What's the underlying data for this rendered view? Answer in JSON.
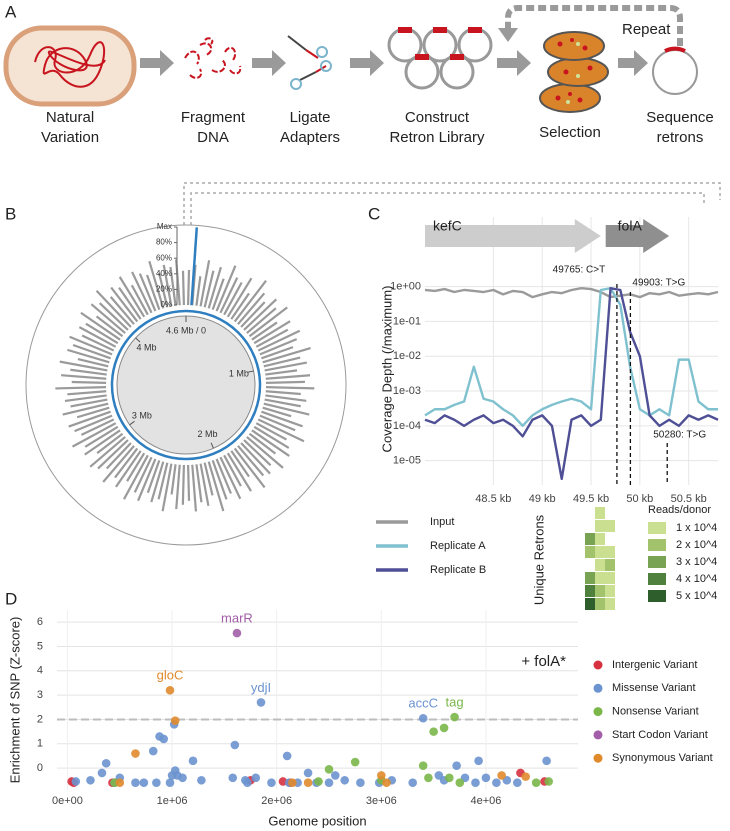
{
  "panel_a": {
    "panel": "A",
    "steps": [
      [
        "Natural",
        "Variation"
      ],
      [
        "Fragment",
        "DNA"
      ],
      [
        "Ligate",
        "Adapters"
      ],
      [
        "Construct",
        "Retron Library"
      ],
      [
        "Selection"
      ],
      [
        "Sequence",
        "retrons"
      ]
    ],
    "repeat": "Repeat"
  },
  "chart_data": [
    {
      "type": "radial",
      "panel": "B",
      "xlim": [
        0,
        4.6
      ],
      "xticks": [
        {
          "value": 0,
          "label": "4.6 Mb / 0"
        },
        {
          "value": 1,
          "label": "1 Mb"
        },
        {
          "value": 2,
          "label": "2 Mb"
        },
        {
          "value": 3,
          "label": "3 Mb"
        },
        {
          "value": 4,
          "label": "4 Mb"
        }
      ],
      "ylim": [
        0,
        100
      ],
      "yticks": [
        {
          "value": 0,
          "label": "0%"
        },
        {
          "value": 20,
          "label": "20%"
        },
        {
          "value": 40,
          "label": "40%"
        },
        {
          "value": 60,
          "label": "60%"
        },
        {
          "value": 80,
          "label": "80%"
        },
        {
          "value": 100,
          "label": "Max"
        }
      ],
      "color": "#9a9a9a",
      "ring_color": "#2f7fc0",
      "values": [
        45,
        52,
        38,
        60,
        48,
        55,
        42,
        63,
        50,
        47,
        58,
        40,
        66,
        52,
        44,
        57,
        49,
        61,
        39,
        54,
        46,
        59,
        51,
        43,
        64,
        48,
        55,
        41,
        57,
        50,
        62,
        45,
        53,
        47,
        60,
        38,
        56,
        49,
        65,
        44,
        52,
        58,
        42,
        61,
        47,
        54,
        50,
        63,
        40,
        57,
        45,
        59,
        48,
        53,
        66,
        43,
        55,
        49,
        60,
        46,
        51,
        57,
        39,
        62,
        48,
        54,
        44,
        58,
        50,
        64,
        42,
        56,
        47,
        61,
        45,
        53,
        59,
        41,
        55,
        49,
        63,
        46,
        52,
        57,
        43,
        60,
        48,
        54,
        50,
        65,
        44,
        58,
        47,
        62,
        40,
        56,
        51,
        59,
        45,
        53,
        48,
        61,
        42,
        57,
        50,
        64,
        46,
        55,
        49,
        60,
        43,
        58,
        52,
        47,
        63,
        45,
        54,
        50,
        59,
        44
      ],
      "highlight": {
        "x": 0.05,
        "value": 100
      }
    },
    {
      "type": "line",
      "panel": "C",
      "ylabel": "Coverage Depth (/maximum)",
      "log_y": true,
      "grid": true,
      "x": [
        47.8,
        47.9,
        48.0,
        48.1,
        48.2,
        48.3,
        48.4,
        48.5,
        48.6,
        48.7,
        48.8,
        48.9,
        49.0,
        49.1,
        49.2,
        49.3,
        49.4,
        49.5,
        49.6,
        49.7,
        49.8,
        49.9,
        50.0,
        50.1,
        50.2,
        50.3,
        50.4,
        50.5,
        50.6,
        50.7,
        50.8
      ],
      "xlim": [
        47.8,
        50.8
      ],
      "xticks": [
        {
          "value": 48.5,
          "label": "48.5 kb"
        },
        {
          "value": 49,
          "label": "49 kb"
        },
        {
          "value": 49.5,
          "label": "49.5 kb"
        },
        {
          "value": 50,
          "label": "50 kb"
        },
        {
          "value": 50.5,
          "label": "50.5 kb"
        }
      ],
      "ylim": [
        2e-06,
        100
      ],
      "yticks": [
        {
          "value": 1e-05,
          "label": "1e-05"
        },
        {
          "value": 0.0001,
          "label": "1e-04"
        },
        {
          "value": 0.001,
          "label": "1e-03"
        },
        {
          "value": 0.01,
          "label": "1e-02"
        },
        {
          "value": 0.1,
          "label": "1e-01"
        },
        {
          "value": 1,
          "label": "1e+00"
        }
      ],
      "series": [
        {
          "name": "Input",
          "color": "#9a9a9a",
          "values": [
            0.8,
            0.75,
            0.85,
            0.7,
            0.8,
            0.75,
            0.7,
            0.8,
            0.6,
            0.75,
            0.7,
            0.5,
            0.6,
            0.7,
            0.65,
            0.8,
            0.9,
            0.85,
            0.7,
            0.5,
            0.55,
            0.6,
            0.5,
            0.65,
            0.6,
            0.7,
            0.55,
            0.6,
            0.65,
            0.6,
            0.7
          ]
        },
        {
          "name": "Replicate A",
          "color": "#7fc1cf",
          "values": [
            0.0002,
            0.0003,
            0.0003,
            0.0004,
            0.0005,
            0.005,
            0.0006,
            0.0005,
            0.0003,
            0.0002,
            0.0001,
            0.0002,
            0.0003,
            0.0004,
            0.0005,
            0.0006,
            0.0005,
            0.0003,
            0.8,
            0.9,
            0.3,
            0.005,
            0.0003,
            0.0002,
            0.0003,
            0.0002,
            0.008,
            0.008,
            0.0005,
            0.0003,
            0.0003
          ]
        },
        {
          "name": "Replicate B",
          "color": "#4f4f96",
          "values": [
            0.00015,
            0.00012,
            0.0002,
            0.00015,
            0.0001,
            0.00015,
            0.0002,
            0.00012,
            0.00015,
            0.0001,
            5e-05,
            0.00015,
            0.0002,
            0.0001,
            3e-06,
            0.00015,
            0.0002,
            0.0001,
            0.00015,
            0.9,
            0.8,
            0.05,
            0.01,
            0.0002,
            0.0001,
            0.00015,
            0.0001,
            0.0002,
            0.00015,
            0.0002,
            0.00015
          ]
        }
      ],
      "genes": [
        {
          "name": "kefC",
          "start": 47.8,
          "end": 49.6,
          "color": "#cdcdcd"
        },
        {
          "name": "folA",
          "start": 49.65,
          "end": 50.3,
          "color": "#8f8f8f"
        }
      ],
      "variants": [
        {
          "label": "49765: C>T",
          "x": 49.765
        },
        {
          "label": "49903: T>G",
          "x": 49.903
        },
        {
          "label": "50280: T>G",
          "x": 50.28
        }
      ],
      "retrons": {
        "label": "Unique Retrons",
        "legend_title": "Reads/donor",
        "levels": [
          {
            "value": 10000,
            "label": "1 x 10^4",
            "color": "#cadf8f"
          },
          {
            "value": 20000,
            "label": "2 x 10^4",
            "color": "#a2c26c"
          },
          {
            "value": 30000,
            "label": "3 x 10^4",
            "color": "#78a352"
          },
          {
            "value": 40000,
            "label": "4 x 10^4",
            "color": "#50803d"
          },
          {
            "value": 50000,
            "label": "5 x 10^4",
            "color": "#2e5e2b"
          }
        ],
        "rows": [
          [
            null,
            10000,
            null
          ],
          [
            null,
            10000,
            10000
          ],
          [
            30000,
            10000,
            null
          ],
          [
            20000,
            10000,
            10000
          ],
          [
            null,
            10000,
            20000
          ],
          [
            30000,
            10000,
            10000
          ],
          [
            40000,
            20000,
            10000
          ],
          [
            50000,
            20000,
            10000
          ]
        ]
      }
    },
    {
      "type": "scatter",
      "panel": "D",
      "xlabel": "Genome position",
      "ylabel": "Enrichment of SNP (Z-score)",
      "annotation": "+ folA*",
      "threshold": 2,
      "grid": true,
      "xlim": [
        -100000,
        4880000
      ],
      "xticks": [
        {
          "value": 0,
          "label": "0e+00"
        },
        {
          "value": 1000000,
          "label": "1e+06"
        },
        {
          "value": 2000000,
          "label": "2e+06"
        },
        {
          "value": 3000000,
          "label": "3e+06"
        },
        {
          "value": 4000000,
          "label": "4e+06"
        }
      ],
      "ylim": [
        -0.9,
        6.5
      ],
      "yticks": [
        0,
        1,
        2,
        3,
        4,
        5,
        6
      ],
      "series": [
        {
          "name": "Intergenic Variant",
          "color": "#d7303f",
          "x": [
            40000,
            60000,
            430000,
            1750000,
            2060000,
            2130000,
            4330000,
            4560000
          ],
          "values": [
            -0.55,
            -0.6,
            -0.6,
            -0.5,
            -0.55,
            -0.6,
            -0.2,
            -0.55
          ]
        },
        {
          "name": "Missense Variant",
          "color": "#6b93cf",
          "x": [
            80000,
            220000,
            330000,
            370000,
            450000,
            500000,
            650000,
            730000,
            820000,
            850000,
            880000,
            920000,
            980000,
            1000000,
            1020000,
            1030000,
            1050000,
            1100000,
            1200000,
            1280000,
            1580000,
            1600000,
            1700000,
            1720000,
            1800000,
            1850000,
            1950000,
            2100000,
            2120000,
            2200000,
            2300000,
            2380000,
            2500000,
            2560000,
            2650000,
            2800000,
            2980000,
            3100000,
            3300000,
            3400000,
            3550000,
            3600000,
            3720000,
            3800000,
            3900000,
            3930000,
            4000000,
            4100000,
            4200000,
            4300000,
            4580000
          ],
          "values": [
            -0.55,
            -0.5,
            -0.2,
            0.2,
            -0.6,
            -0.4,
            -0.6,
            -0.6,
            0.7,
            -0.6,
            1.3,
            1.2,
            -0.6,
            -0.3,
            1.8,
            -0.1,
            -0.3,
            -0.4,
            0.3,
            -0.5,
            -0.4,
            0.95,
            -0.5,
            -0.6,
            -0.4,
            2.7,
            -0.6,
            0.5,
            -0.6,
            -0.6,
            -0.2,
            -0.6,
            -0.6,
            -0.3,
            -0.5,
            -0.6,
            -0.6,
            -0.5,
            -0.6,
            2.05,
            -0.3,
            -0.5,
            0.1,
            -0.4,
            -0.6,
            0.3,
            -0.4,
            -0.6,
            -0.5,
            -0.6,
            0.3
          ],
          "point_labels": [
            null,
            null,
            null,
            null,
            null,
            null,
            null,
            null,
            null,
            null,
            null,
            null,
            null,
            null,
            null,
            null,
            null,
            null,
            null,
            null,
            null,
            null,
            null,
            null,
            null,
            "ydjI",
            null,
            null,
            null,
            null,
            null,
            null,
            null,
            null,
            null,
            null,
            null,
            null,
            null,
            "accC",
            null,
            null,
            null,
            null,
            null,
            null,
            null,
            null,
            null,
            null,
            null
          ]
        },
        {
          "name": "Nonsense Variant",
          "color": "#7ab648",
          "x": [
            450000,
            2400000,
            2500000,
            2750000,
            3000000,
            3400000,
            3450000,
            3500000,
            3600000,
            3650000,
            3700000,
            3750000,
            4480000,
            4600000
          ],
          "values": [
            -0.6,
            -0.55,
            -0.05,
            0.25,
            -0.5,
            0.1,
            -0.4,
            1.5,
            1.65,
            -0.4,
            2.1,
            -0.6,
            -0.6,
            -0.55
          ],
          "point_labels": [
            null,
            null,
            null,
            null,
            null,
            null,
            null,
            null,
            null,
            null,
            "tag",
            null,
            null,
            null
          ]
        },
        {
          "name": "Start Codon Variant",
          "color": "#a25ea8",
          "x": [
            1620000
          ],
          "values": [
            5.55
          ],
          "point_labels": [
            "marR"
          ]
        },
        {
          "name": "Synonymous Variant",
          "color": "#e08a2c",
          "x": [
            500000,
            650000,
            980000,
            1030000,
            2150000,
            2300000,
            3000000,
            3050000,
            4150000,
            4380000
          ],
          "values": [
            -0.6,
            0.6,
            3.2,
            1.95,
            -0.6,
            -0.6,
            -0.3,
            -0.6,
            -0.3,
            -0.35
          ],
          "point_labels": [
            null,
            null,
            "gloC",
            null,
            null,
            null,
            null,
            null,
            null,
            null
          ]
        }
      ]
    }
  ]
}
